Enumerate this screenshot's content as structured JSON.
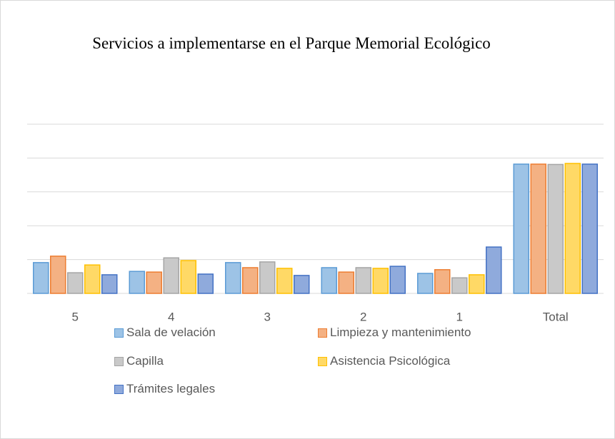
{
  "chart_data": {
    "type": "bar",
    "title": "Servicios a implementarse en el Parque Memorial Ecológico",
    "categories": [
      "5",
      "4",
      "3",
      "2",
      "1",
      "Total"
    ],
    "series": [
      {
        "name": "Sala de velación",
        "color": "#9dc3e6",
        "values": [
          91,
          65,
          91,
          76,
          59,
          382
        ]
      },
      {
        "name": "Limpieza y mantenimiento",
        "color": "#f4b183",
        "values": [
          110,
          63,
          76,
          63,
          70,
          382
        ]
      },
      {
        "name": "Capilla",
        "color": "#c9c9c9",
        "values": [
          61,
          105,
          93,
          76,
          46,
          381
        ]
      },
      {
        "name": "Asistencia Psicológica",
        "color": "#ffd966",
        "values": [
          84,
          97,
          74,
          74,
          55,
          384
        ]
      },
      {
        "name": "Trámites legales",
        "color": "#8faadc",
        "values": [
          55,
          57,
          53,
          80,
          137,
          382
        ]
      }
    ],
    "ylim": [
      0,
      500
    ],
    "yticks": [
      0,
      100,
      200,
      300,
      400,
      500
    ],
    "grid": true
  }
}
